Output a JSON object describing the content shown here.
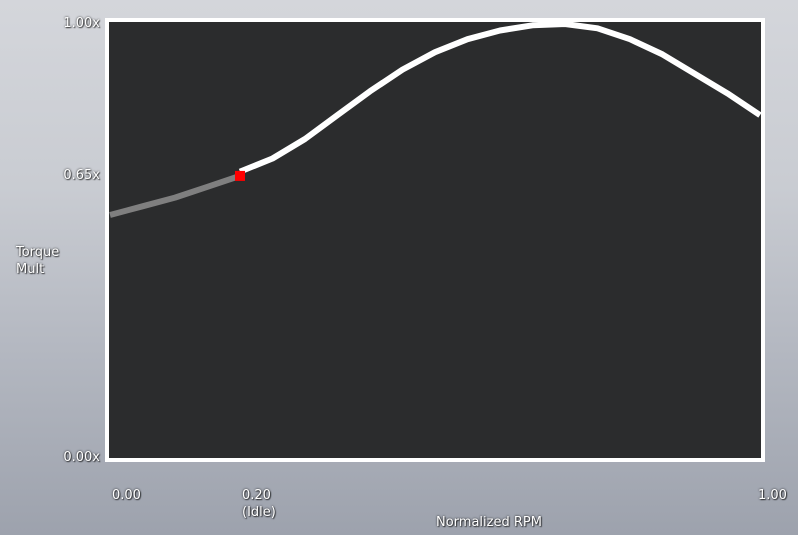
{
  "chart_data": {
    "type": "line",
    "title": "",
    "xlabel": "Normalized RPM",
    "ylabel": "Torque\nMult",
    "xlim": [
      0,
      1
    ],
    "ylim": [
      0,
      1
    ],
    "grid": false,
    "y_ticks": [
      {
        "value": 0.0,
        "label": "0.00x"
      },
      {
        "value": 0.65,
        "label": "0.65x"
      },
      {
        "value": 1.0,
        "label": "1.00x"
      }
    ],
    "x_ticks": [
      {
        "value": 0.0,
        "label": "0.00"
      },
      {
        "value": 0.2,
        "label": "0.20\n(Idle)"
      },
      {
        "value": 1.0,
        "label": "1.00"
      }
    ],
    "series": [
      {
        "role": "below-idle",
        "color": "#7f7f7f",
        "x": [
          0.0,
          0.05,
          0.1,
          0.15,
          0.2
        ],
        "y": [
          0.56,
          0.58,
          0.6,
          0.625,
          0.65
        ]
      },
      {
        "role": "active",
        "color": "#ffffff",
        "x": [
          0.2,
          0.25,
          0.3,
          0.35,
          0.4,
          0.45,
          0.5,
          0.55,
          0.6,
          0.65,
          0.7,
          0.75,
          0.8,
          0.85,
          0.9,
          0.95,
          1.0
        ],
        "y": [
          0.66,
          0.69,
          0.735,
          0.79,
          0.845,
          0.895,
          0.935,
          0.965,
          0.985,
          0.997,
          1.0,
          0.99,
          0.965,
          0.93,
          0.885,
          0.84,
          0.79
        ]
      }
    ],
    "marker": {
      "x": 0.2,
      "y": 0.65,
      "color": "#ff0000"
    },
    "plot_background": "#2b2c2d",
    "frame_color": "#ffffff"
  }
}
